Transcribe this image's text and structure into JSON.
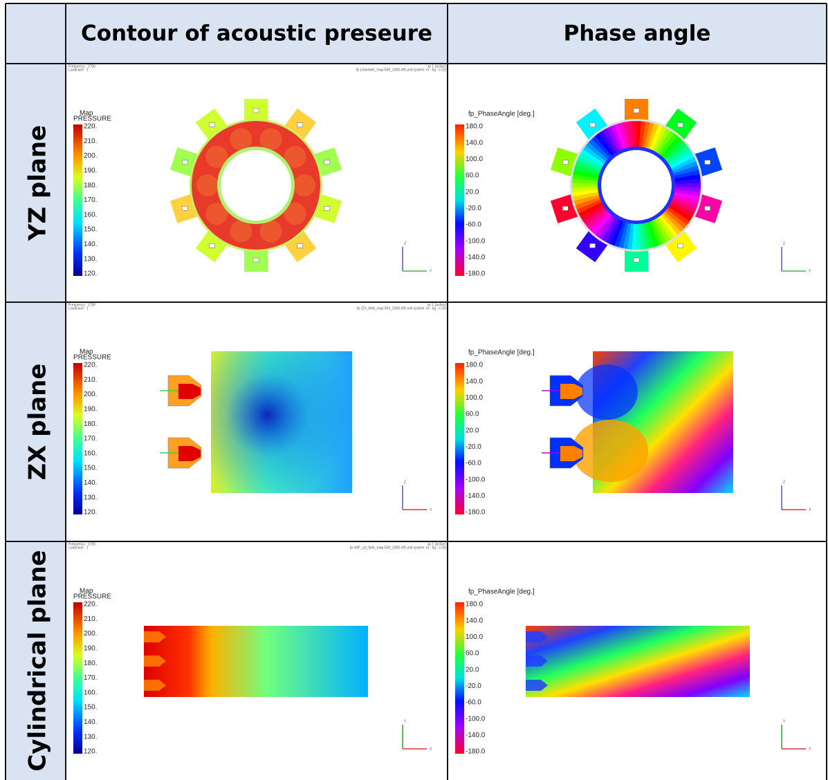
{
  "table": {
    "header": [
      "Contour of acoustic preseure",
      "Phase angle"
    ],
    "rows": [
      {
        "label": "YZ plane",
        "info_left": [
          "Frequency : 1700",
          "Loadcase : 1"
        ],
        "info_right": [
          "vp 1 (active)",
          "fp (chamber_map-500_2000.nff) unit system: m - kg - s (S)"
        ],
        "triad": [
          "Z",
          "Y"
        ]
      },
      {
        "label": "ZX plane",
        "info_left": [
          "Frequency : 1700",
          "Loadcase : 1"
        ],
        "info_right": [
          "vp 1 (active)",
          "fp (ZX_field_map-500_2000.nff) unit system: m - kg - s (S)"
        ],
        "triad": [
          "Z",
          "X"
        ]
      },
      {
        "label": "Cylindrical  plane",
        "info_left": [
          "Frequency : 1700",
          "Loadcase : 1"
        ],
        "info_right": [
          "vp 1 (active)",
          "fp (WF_cyl_field_map-500_2000.nff) unit system: m - kg - s (S)"
        ],
        "triad": [
          "Y",
          "X"
        ]
      }
    ]
  },
  "pressure_legend": {
    "title": "Map",
    "quantity": "PRESSURE",
    "labels": [
      "220.",
      "210.",
      "200.",
      "190.",
      "180.",
      "170.",
      "160.",
      "150.",
      "140.",
      "130.",
      "120."
    ]
  },
  "phase_legend": {
    "title": "fp_PhaseAngle [deg.]",
    "labels": [
      "180.0",
      "140.0",
      "100.0",
      "60.0",
      "20.0",
      "-20.0",
      "-60.0",
      "-100.0",
      "-140.0",
      "-180.0"
    ]
  }
}
